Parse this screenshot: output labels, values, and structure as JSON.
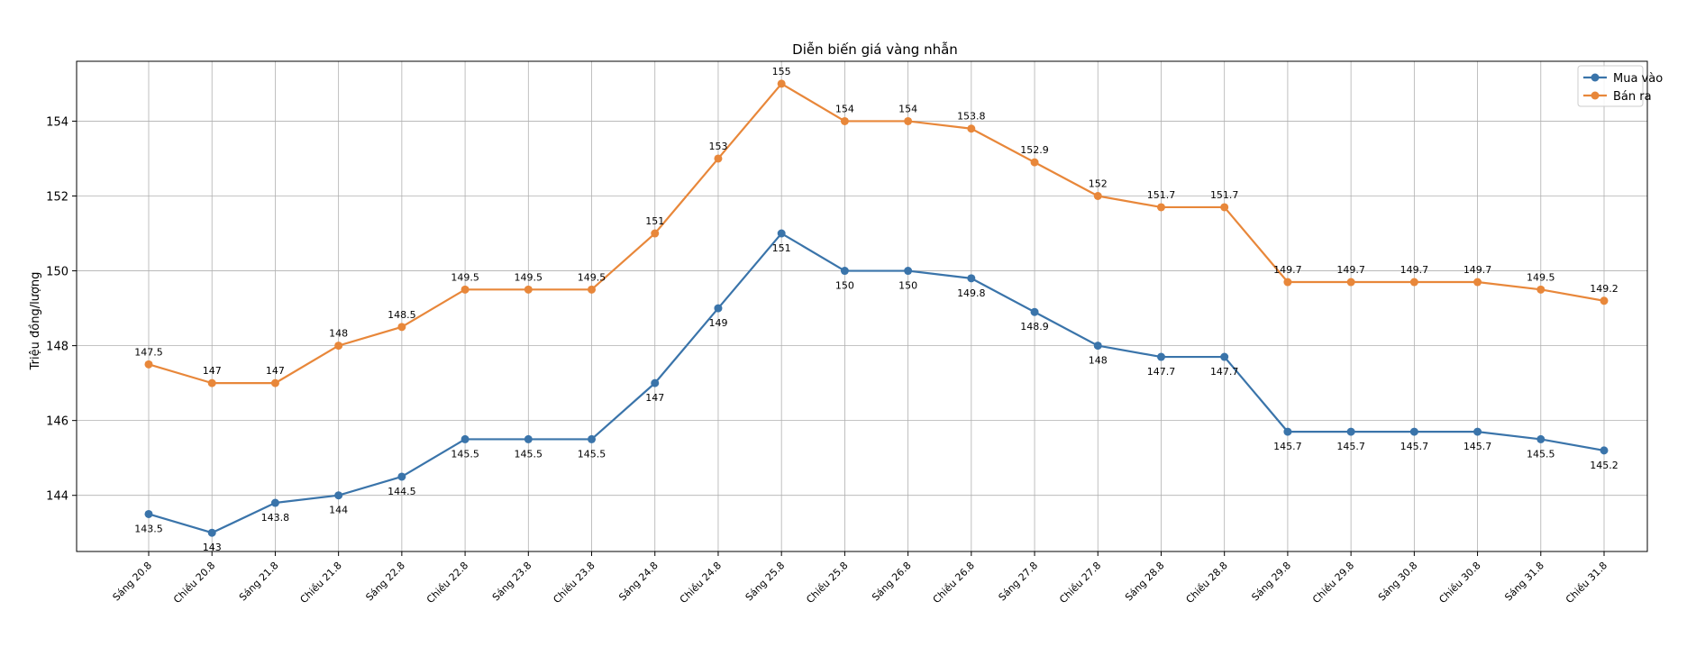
{
  "chart_data": {
    "type": "line",
    "title": "Diễn biến giá vàng nhẫn",
    "xlabel": "",
    "ylabel": "Triệu đồng/lượng",
    "categories": [
      "Sáng 20.8",
      "Chiều 20.8",
      "Sáng 21.8",
      "Chiều 21.8",
      "Sáng 22.8",
      "Chiều 22.8",
      "Sáng 23.8",
      "Chiều 23.8",
      "Sáng 24.8",
      "Chiều 24.8",
      "Sáng 25.8",
      "Chiều 25.8",
      "Sáng 26.8",
      "Chiều 26.8",
      "Sáng 27.8",
      "Chiều 27.8",
      "Sáng 28.8",
      "Chiều 28.8",
      "Sáng 29.8",
      "Chiều 29.8",
      "Sáng 30.8",
      "Chiều 30.8",
      "Sáng 31.8",
      "Chiều 31.8"
    ],
    "series": [
      {
        "name": "Mua vào",
        "color": "#3a74aa",
        "values": [
          143.5,
          143,
          143.8,
          144,
          144.5,
          145.5,
          145.5,
          145.5,
          147,
          149,
          151,
          150,
          150,
          149.8,
          148.9,
          148,
          147.7,
          147.7,
          145.7,
          145.7,
          145.7,
          145.7,
          145.5,
          145.2
        ],
        "labels": [
          "143.5",
          "143",
          "143.8",
          "144",
          "144.5",
          "145.5",
          "145.5",
          "145.5",
          "147",
          "149",
          "151",
          "150",
          "150",
          "149.8",
          "148.9",
          "148",
          "147.7",
          "147.7",
          "145.7",
          "145.7",
          "145.7",
          "145.7",
          "145.5",
          "145.2"
        ]
      },
      {
        "name": "Bán ra",
        "color": "#e8873a",
        "values": [
          147.5,
          147,
          147,
          148,
          148.5,
          149.5,
          149.5,
          149.5,
          151,
          153,
          155,
          154,
          154,
          153.8,
          152.9,
          152,
          151.7,
          151.7,
          149.7,
          149.7,
          149.7,
          149.7,
          149.5,
          149.2
        ],
        "labels": [
          "147.5",
          "147",
          "147",
          "148",
          "148.5",
          "149.5",
          "149.5",
          "149.5",
          "151",
          "153",
          "155",
          "154",
          "154",
          "153.8",
          "152.9",
          "152",
          "151.7",
          "151.7",
          "149.7",
          "149.7",
          "149.7",
          "149.7",
          "149.5",
          "149.2"
        ]
      }
    ],
    "ylim": [
      142.5,
      155.6
    ],
    "yticks": [
      144,
      146,
      148,
      150,
      152,
      154
    ],
    "grid": true,
    "legend": "top-right"
  }
}
